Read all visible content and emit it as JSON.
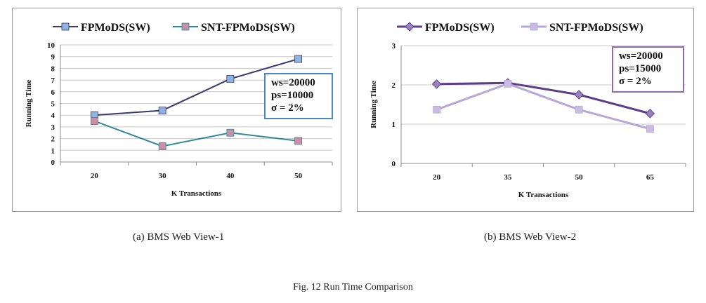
{
  "chart_data": [
    {
      "type": "line",
      "title": "",
      "xlabel": "K Transactions",
      "ylabel": "Running Time",
      "categories": [
        "20",
        "30",
        "40",
        "50"
      ],
      "ylim": [
        0,
        10
      ],
      "yticks": [
        "0",
        "1",
        "2",
        "3",
        "4",
        "5",
        "6",
        "7",
        "8",
        "9",
        "10"
      ],
      "series": [
        {
          "name": "FPMoDS(SW)",
          "values": [
            4.0,
            4.4,
            7.1,
            8.8
          ],
          "color": "#3a3a6e",
          "marker": "square",
          "marker_color": "#8fb4e3"
        },
        {
          "name": "SNT-FPMoDS(SW)",
          "values": [
            3.5,
            1.35,
            2.5,
            1.8
          ],
          "color": "#2f8a97",
          "marker": "square",
          "marker_color": "#c890a8"
        }
      ],
      "annotation": [
        "ws=20000",
        "ps=10000",
        "σ = 2%"
      ],
      "caption": "(a) BMS Web View-1"
    },
    {
      "type": "line",
      "title": "",
      "xlabel": "K Transactions",
      "ylabel": "Running Time",
      "categories": [
        "20",
        "35",
        "50",
        "65"
      ],
      "ylim": [
        0,
        3
      ],
      "yticks": [
        "0",
        "1",
        "2",
        "3"
      ],
      "series": [
        {
          "name": "FPMoDS(SW)",
          "values": [
            2.02,
            2.05,
            1.75,
            1.27
          ],
          "color": "#5c3d8a",
          "marker": "diamond",
          "marker_color": "#9a84c0"
        },
        {
          "name": "SNT-FPMoDS(SW)",
          "values": [
            1.37,
            2.03,
            1.37,
            0.88
          ],
          "color": "#b5a8d6",
          "marker": "square",
          "marker_color": "#c8bce0"
        }
      ],
      "annotation": [
        "ws=20000",
        "ps=15000",
        "σ = 2%"
      ],
      "caption": "(b) BMS Web View-2"
    }
  ],
  "figure_caption": "Fig. 12 Run Time Comparison"
}
